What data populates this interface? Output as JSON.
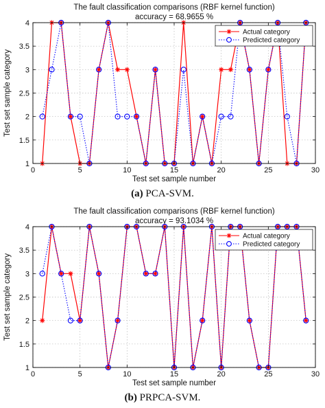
{
  "chart_data": [
    {
      "type": "line",
      "title": "The fault classification comparisons (RBF kernel function)",
      "subtitle": "accuracy = 68.9655 %",
      "xlabel": "Test set sample number",
      "ylabel": "Test set sample category",
      "caption_tag": "(a)",
      "caption_text": "PCA-SVM.",
      "xlim": [
        0,
        30
      ],
      "ylim": [
        1,
        4
      ],
      "xticks": [
        0,
        5,
        10,
        15,
        20,
        25,
        30
      ],
      "yticks": [
        1,
        1.5,
        2,
        2.5,
        3,
        3.5,
        4
      ],
      "ytick_labels": [
        "1",
        "1.5",
        "2",
        "2.5",
        "3",
        "3.5",
        "4"
      ],
      "grid": true,
      "legend_position": "top-right",
      "x": [
        1,
        2,
        3,
        4,
        5,
        6,
        7,
        8,
        9,
        10,
        11,
        12,
        13,
        14,
        15,
        16,
        17,
        18,
        19,
        20,
        21,
        22,
        23,
        24,
        25,
        26,
        27,
        28,
        29
      ],
      "series": [
        {
          "name": "Actual category",
          "color": "#ff0000",
          "style": "solid",
          "marker": "asterisk",
          "values": [
            1,
            4,
            4,
            2,
            1,
            1,
            3,
            4,
            3,
            3,
            2,
            1,
            3,
            1,
            1,
            4,
            1,
            2,
            1,
            3,
            3,
            4,
            3,
            1,
            3,
            4,
            1,
            1,
            4
          ]
        },
        {
          "name": "Predicted category",
          "color": "#0000ff",
          "style": "dotted",
          "marker": "circle",
          "values": [
            2,
            3,
            4,
            2,
            2,
            1,
            3,
            4,
            2,
            2,
            2,
            1,
            3,
            1,
            1,
            3,
            1,
            2,
            1,
            2,
            2,
            4,
            3,
            1,
            3,
            4,
            2,
            1,
            4
          ]
        }
      ]
    },
    {
      "type": "line",
      "title": "The fault classification comparisons (RBF kernel function)",
      "subtitle": "accuracy = 93.1034 %",
      "xlabel": "Test set sample number",
      "ylabel": "Test set sample category",
      "caption_tag": "(b)",
      "caption_text": "PRPCA-SVM.",
      "xlim": [
        0,
        30
      ],
      "ylim": [
        1,
        4
      ],
      "xticks": [
        0,
        5,
        10,
        15,
        20,
        25,
        30
      ],
      "yticks": [
        1,
        1.5,
        2,
        2.5,
        3,
        3.5,
        4
      ],
      "ytick_labels": [
        "1",
        "1.5",
        "2",
        "2.5",
        "3",
        "3.5",
        "4"
      ],
      "grid": true,
      "legend_position": "top-right",
      "x": [
        1,
        2,
        3,
        4,
        5,
        6,
        7,
        8,
        9,
        10,
        11,
        12,
        13,
        14,
        15,
        16,
        17,
        18,
        19,
        20,
        21,
        22,
        23,
        24,
        25,
        26,
        27,
        28,
        29
      ],
      "series": [
        {
          "name": "Actual category",
          "color": "#ff0000",
          "style": "solid",
          "marker": "asterisk",
          "values": [
            2,
            4,
            3,
            3,
            2,
            4,
            3,
            1,
            2,
            4,
            4,
            3,
            3,
            4,
            1,
            4,
            1,
            2,
            4,
            1,
            4,
            4,
            2,
            1,
            1,
            4,
            4,
            4,
            2
          ]
        },
        {
          "name": "Predicted category",
          "color": "#0000ff",
          "style": "dotted",
          "marker": "circle",
          "values": [
            3,
            4,
            3,
            2,
            2,
            4,
            3,
            1,
            2,
            4,
            4,
            3,
            3,
            4,
            1,
            4,
            1,
            2,
            4,
            1,
            4,
            4,
            2,
            1,
            1,
            4,
            4,
            4,
            2
          ]
        }
      ]
    }
  ]
}
